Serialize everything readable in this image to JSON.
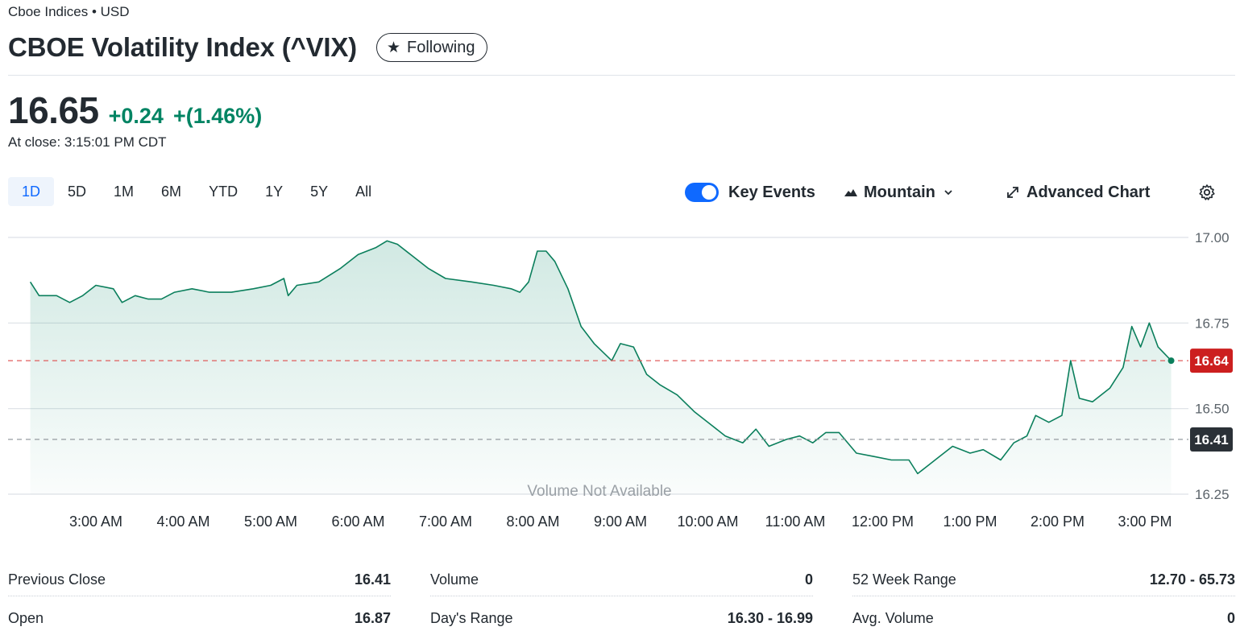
{
  "header": {
    "exchange": "Cboe Indices • USD",
    "title": "CBOE Volatility Index (^VIX)",
    "follow_label": "Following"
  },
  "quote": {
    "price": "16.65",
    "change": "+0.24",
    "change_pct": "+(1.46%)",
    "close_time": "At close: 3:15:01 PM CDT"
  },
  "ranges": [
    "1D",
    "5D",
    "1M",
    "6M",
    "YTD",
    "1Y",
    "5Y",
    "All"
  ],
  "active_range": "1D",
  "toolbar": {
    "key_events_label": "Key Events",
    "key_events_on": true,
    "chart_type_label": "Mountain",
    "advanced_label": "Advanced Chart"
  },
  "colors": {
    "accent": "#0f69ff",
    "positive": "#008463",
    "line": "#0b7f5c",
    "current_price_badge": "#cc1f1f",
    "prev_close_badge": "#2b3137"
  },
  "chart_data": {
    "type": "area",
    "xlabel": "",
    "ylabel": "",
    "x_ticks": [
      "3:00 AM",
      "4:00 AM",
      "5:00 AM",
      "6:00 AM",
      "7:00 AM",
      "8:00 AM",
      "9:00 AM",
      "10:00 AM",
      "11:00 AM",
      "12:00 PM",
      "1:00 PM",
      "2:00 PM",
      "3:00 PM"
    ],
    "y_ticks": [
      "17.00",
      "16.75",
      "16.50",
      "16.25"
    ],
    "ylim": [
      16.22,
      17.03
    ],
    "xlim": [
      2.22,
      15.35
    ],
    "grid": true,
    "annotation": "Volume Not Available",
    "current_price": {
      "label": "16.64",
      "value": 16.64
    },
    "previous_close": {
      "label": "16.41",
      "value": 16.41
    },
    "series": [
      {
        "values": [
          [
            2.25,
            16.87
          ],
          [
            2.35,
            16.83
          ],
          [
            2.55,
            16.83
          ],
          [
            2.7,
            16.81
          ],
          [
            2.85,
            16.83
          ],
          [
            3.0,
            16.86
          ],
          [
            3.2,
            16.85
          ],
          [
            3.3,
            16.81
          ],
          [
            3.45,
            16.83
          ],
          [
            3.6,
            16.82
          ],
          [
            3.75,
            16.82
          ],
          [
            3.9,
            16.84
          ],
          [
            4.1,
            16.85
          ],
          [
            4.3,
            16.84
          ],
          [
            4.55,
            16.84
          ],
          [
            4.8,
            16.85
          ],
          [
            5.0,
            16.86
          ],
          [
            5.15,
            16.88
          ],
          [
            5.2,
            16.83
          ],
          [
            5.3,
            16.86
          ],
          [
            5.55,
            16.87
          ],
          [
            5.8,
            16.91
          ],
          [
            6.0,
            16.95
          ],
          [
            6.2,
            16.97
          ],
          [
            6.33,
            16.99
          ],
          [
            6.45,
            16.98
          ],
          [
            6.6,
            16.95
          ],
          [
            6.8,
            16.91
          ],
          [
            7.0,
            16.88
          ],
          [
            7.3,
            16.87
          ],
          [
            7.55,
            16.86
          ],
          [
            7.75,
            16.85
          ],
          [
            7.85,
            16.84
          ],
          [
            7.95,
            16.87
          ],
          [
            8.05,
            16.96
          ],
          [
            8.15,
            16.96
          ],
          [
            8.25,
            16.93
          ],
          [
            8.4,
            16.85
          ],
          [
            8.55,
            16.74
          ],
          [
            8.7,
            16.69
          ],
          [
            8.9,
            16.64
          ],
          [
            9.0,
            16.69
          ],
          [
            9.15,
            16.68
          ],
          [
            9.3,
            16.6
          ],
          [
            9.45,
            16.57
          ],
          [
            9.65,
            16.54
          ],
          [
            9.85,
            16.49
          ],
          [
            10.05,
            16.45
          ],
          [
            10.2,
            16.42
          ],
          [
            10.4,
            16.4
          ],
          [
            10.55,
            16.44
          ],
          [
            10.7,
            16.39
          ],
          [
            10.9,
            16.41
          ],
          [
            11.05,
            16.42
          ],
          [
            11.2,
            16.4
          ],
          [
            11.35,
            16.43
          ],
          [
            11.5,
            16.43
          ],
          [
            11.7,
            16.37
          ],
          [
            11.9,
            16.36
          ],
          [
            12.1,
            16.35
          ],
          [
            12.3,
            16.35
          ],
          [
            12.4,
            16.31
          ],
          [
            12.5,
            16.33
          ],
          [
            12.65,
            16.36
          ],
          [
            12.8,
            16.39
          ],
          [
            13.0,
            16.37
          ],
          [
            13.15,
            16.38
          ],
          [
            13.35,
            16.35
          ],
          [
            13.5,
            16.4
          ],
          [
            13.65,
            16.42
          ],
          [
            13.75,
            16.48
          ],
          [
            13.9,
            16.46
          ],
          [
            14.05,
            16.48
          ],
          [
            14.15,
            16.64
          ],
          [
            14.25,
            16.53
          ],
          [
            14.4,
            16.52
          ],
          [
            14.6,
            16.56
          ],
          [
            14.75,
            16.62
          ],
          [
            14.85,
            16.74
          ],
          [
            14.95,
            16.68
          ],
          [
            15.05,
            16.75
          ],
          [
            15.15,
            16.68
          ],
          [
            15.3,
            16.64
          ]
        ]
      }
    ]
  },
  "stats": {
    "col1": [
      {
        "label": "Previous Close",
        "value": "16.41"
      },
      {
        "label": "Open",
        "value": "16.87"
      }
    ],
    "col2": [
      {
        "label": "Volume",
        "value": "0"
      },
      {
        "label": "Day's Range",
        "value": "16.30 - 16.99"
      }
    ],
    "col3": [
      {
        "label": "52 Week Range",
        "value": "12.70 - 65.73"
      },
      {
        "label": "Avg. Volume",
        "value": "0"
      }
    ]
  }
}
